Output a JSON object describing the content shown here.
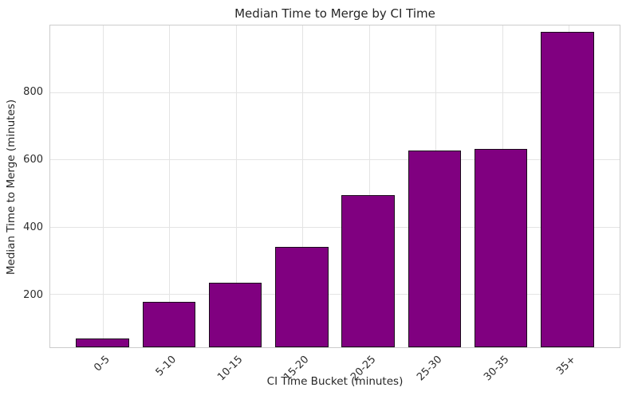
{
  "chart_data": {
    "type": "bar",
    "title": "Median Time to Merge by CI Time",
    "xlabel": "CI Time Bucket (minutes)",
    "ylabel": "Median Time to Merge (minutes)",
    "categories": [
      "0-5",
      "5-10",
      "10-15",
      "15-20",
      "20-25",
      "25-30",
      "30-35",
      "35+"
    ],
    "values": [
      70,
      179,
      237,
      343,
      496,
      628,
      634,
      982
    ],
    "ylim": [
      45,
      1000
    ],
    "yticks": [
      200,
      400,
      600,
      800
    ],
    "grid": "on",
    "legend": "none",
    "colors": {
      "bar_fill": "#800080",
      "bar_edge": "#1a0a1a",
      "grid_line": "#e4e4e4",
      "spine": "#cccccc",
      "text": "#262626",
      "background": "#ffffff"
    }
  }
}
